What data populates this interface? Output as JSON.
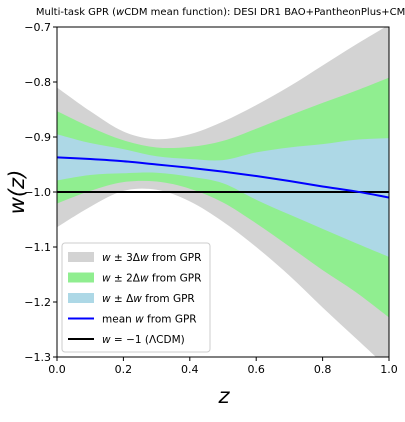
{
  "chart_data": {
    "type": "area",
    "title": "Multi-task GPR (wCDM mean function): DESI DR1 BAO+PantheonPlus+CMB",
    "title_parts": [
      "Multi-task GPR (",
      "w",
      "CDM mean function): DESI DR1 BAO+PantheonPlus+CMB"
    ],
    "xlabel": "z",
    "ylabel": "w(z)",
    "xlim": [
      0.0,
      1.0
    ],
    "ylim": [
      -1.3,
      -0.7
    ],
    "xticks": [
      "0.0",
      "0.2",
      "0.4",
      "0.6",
      "0.8",
      "1.0"
    ],
    "xtick_values": [
      0.0,
      0.2,
      0.4,
      0.6,
      0.8,
      1.0
    ],
    "yticks": [
      "−0.7",
      "−0.8",
      "−0.9",
      "−1.0",
      "−1.1",
      "−1.2",
      "−1.3"
    ],
    "ytick_values": [
      -0.7,
      -0.8,
      -0.9,
      -1.0,
      -1.1,
      -1.2,
      -1.3
    ],
    "grid": false,
    "legend_position": "lower-left",
    "x": [
      0.0,
      0.1,
      0.2,
      0.3,
      0.4,
      0.5,
      0.6,
      0.7,
      0.8,
      0.9,
      1.0
    ],
    "mean": [
      -0.937,
      -0.94,
      -0.944,
      -0.95,
      -0.956,
      -0.963,
      -0.971,
      -0.98,
      -0.99,
      -0.999,
      -1.01
    ],
    "bands": {
      "sigma3": {
        "upper": [
          -0.81,
          -0.853,
          -0.89,
          -0.904,
          -0.895,
          -0.872,
          -0.842,
          -0.808,
          -0.77,
          -0.732,
          -0.696
        ],
        "lower": [
          -1.064,
          -1.027,
          -0.998,
          -0.996,
          -1.017,
          -1.054,
          -1.1,
          -1.152,
          -1.21,
          -1.266,
          -1.322
        ]
      },
      "sigma2": {
        "upper": [
          -0.853,
          -0.882,
          -0.906,
          -0.919,
          -0.918,
          -0.907,
          -0.885,
          -0.861,
          -0.838,
          -0.816,
          -0.792
        ],
        "lower": [
          -1.021,
          -0.998,
          -0.982,
          -0.981,
          -0.994,
          -1.019,
          -1.057,
          -1.099,
          -1.142,
          -1.182,
          -1.228
        ]
      },
      "sigma1": {
        "upper": [
          -0.895,
          -0.911,
          -0.922,
          -0.935,
          -0.94,
          -0.942,
          -0.928,
          -0.919,
          -0.913,
          -0.905,
          -0.902
        ],
        "lower": [
          -0.979,
          -0.969,
          -0.966,
          -0.965,
          -0.972,
          -0.984,
          -1.014,
          -1.041,
          -1.067,
          -1.093,
          -1.118
        ]
      }
    },
    "reference_line": -1.0,
    "legend": [
      {
        "label": "w ± 3Δw from GPR",
        "parts": [
          "w",
          " ± 3Δ",
          "w",
          " from GPR"
        ],
        "kind": "patch",
        "color": "#d3d3d3"
      },
      {
        "label": "w ± 2Δw from GPR",
        "parts": [
          "w",
          " ± 2Δ",
          "w",
          " from GPR"
        ],
        "kind": "patch",
        "color": "#90ee90"
      },
      {
        "label": "w ± Δw from GPR",
        "parts": [
          "w",
          " ± Δ",
          "w",
          " from GPR"
        ],
        "kind": "patch",
        "color": "#add8e6"
      },
      {
        "label": "mean w from GPR",
        "parts": [
          "mean ",
          "w",
          " from GPR",
          ""
        ],
        "kind": "line",
        "color": "#0000ff"
      },
      {
        "label": "w = −1 (ΛCDM)",
        "parts": [
          "w",
          " = −1 (ΛCDM)",
          "",
          ""
        ],
        "kind": "line",
        "color": "#000000"
      }
    ],
    "colors": {
      "sigma3": "#d3d3d3",
      "sigma2": "#90ee90",
      "sigma1": "#add8e6",
      "mean": "#0000ff",
      "reference": "#000000"
    }
  }
}
